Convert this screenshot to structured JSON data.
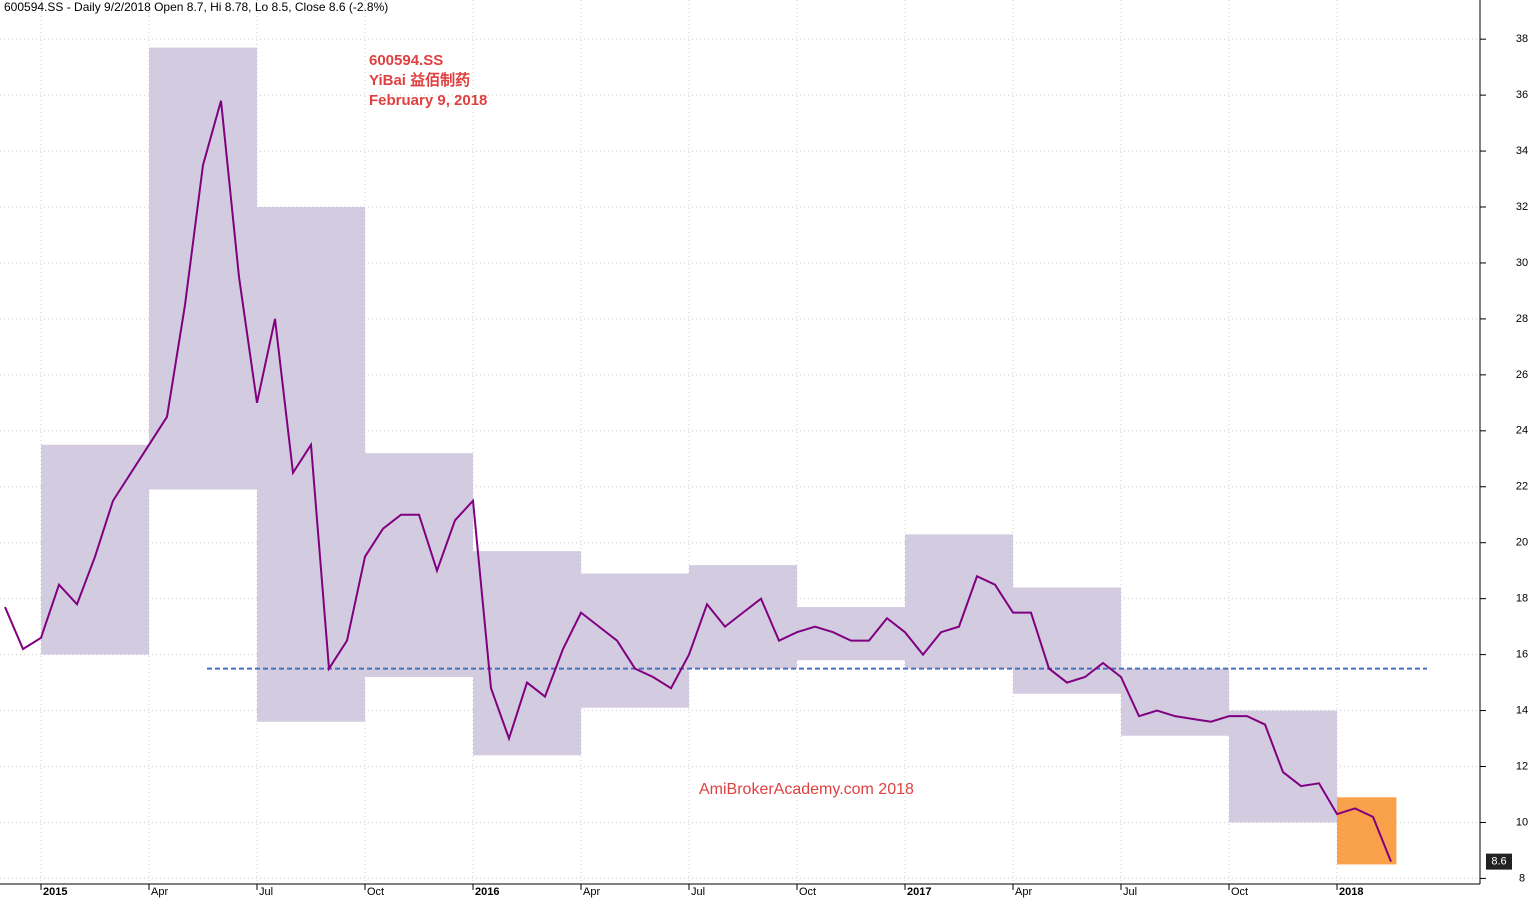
{
  "chart_data": {
    "type": "line",
    "title": "600594.SS - Daily 9/2/2018 Open 8.7, Hi 8.78, Lo 8.5, Close 8.6 (-2.8%)",
    "annotations": [
      "600594.SS",
      "YiBai 益佰制药",
      "February 9, 2018"
    ],
    "watermark": "AmiBrokerAcademy.com  2018",
    "categories": [
      null,
      null,
      "2015",
      null,
      null,
      null,
      null,
      null,
      "Apr",
      null,
      null,
      null,
      null,
      null,
      "Jul",
      null,
      null,
      null,
      null,
      null,
      "Oct",
      null,
      null,
      null,
      null,
      null,
      "2016",
      null,
      null,
      null,
      null,
      null,
      "Apr",
      null,
      null,
      null,
      null,
      null,
      "Jul",
      null,
      null,
      null,
      null,
      null,
      "Oct",
      null,
      null,
      null,
      null,
      null,
      "2017",
      null,
      null,
      null,
      null,
      null,
      "Apr",
      null,
      null,
      null,
      null,
      null,
      "Jul",
      null,
      null,
      null,
      null,
      null,
      "Oct",
      null,
      null,
      null,
      null,
      null,
      "2018",
      null,
      null,
      null
    ],
    "values": [
      17.7,
      16.2,
      16.6,
      18.5,
      17.8,
      19.5,
      21.5,
      22.5,
      23.5,
      24.5,
      28.5,
      33.5,
      35.8,
      29.5,
      25.0,
      28.0,
      22.5,
      23.5,
      15.5,
      16.5,
      19.5,
      20.5,
      21.0,
      21.0,
      19.0,
      20.8,
      21.5,
      14.8,
      13.0,
      15.0,
      14.5,
      16.2,
      17.5,
      17.0,
      16.5,
      15.5,
      15.2,
      14.8,
      16.0,
      17.8,
      17.0,
      17.5,
      18.0,
      16.5,
      16.8,
      17.0,
      16.8,
      16.5,
      16.5,
      17.3,
      16.8,
      16.0,
      16.8,
      17.0,
      18.8,
      18.5,
      17.5,
      17.5,
      15.5,
      15.0,
      15.2,
      15.7,
      15.2,
      13.8,
      14.0,
      13.8,
      13.7,
      13.6,
      13.8,
      13.8,
      13.5,
      11.8,
      11.3,
      11.4,
      10.3,
      10.5,
      10.2,
      8.6
    ],
    "color": "#800080",
    "ranges": [
      {
        "low": 16.0,
        "high": 23.5
      },
      {
        "low": 21.9,
        "high": 37.7
      },
      {
        "low": 13.6,
        "high": 32.0
      },
      {
        "low": 15.2,
        "high": 23.2
      },
      {
        "low": 12.4,
        "high": 19.7
      },
      {
        "low": 14.1,
        "high": 18.9
      },
      {
        "low": 15.5,
        "high": 19.2
      },
      {
        "low": 15.8,
        "high": 17.7
      },
      {
        "low": 15.5,
        "high": 20.3
      },
      {
        "low": 14.6,
        "high": 18.4
      },
      {
        "low": 13.1,
        "high": 15.5
      },
      {
        "low": 10.0,
        "high": 14.0
      },
      {
        "low": 8.5,
        "high": 10.9
      }
    ],
    "range_color": "#cbc3db",
    "current_range_color": "#f9a04a",
    "reference_line": 15.5,
    "last_close": 8.6,
    "ylim": [
      7.8,
      39.4
    ],
    "yticks": [
      8,
      10,
      12,
      14,
      16,
      18,
      20,
      22,
      24,
      26,
      28,
      30,
      32,
      34,
      36,
      38
    ],
    "grid": true
  }
}
